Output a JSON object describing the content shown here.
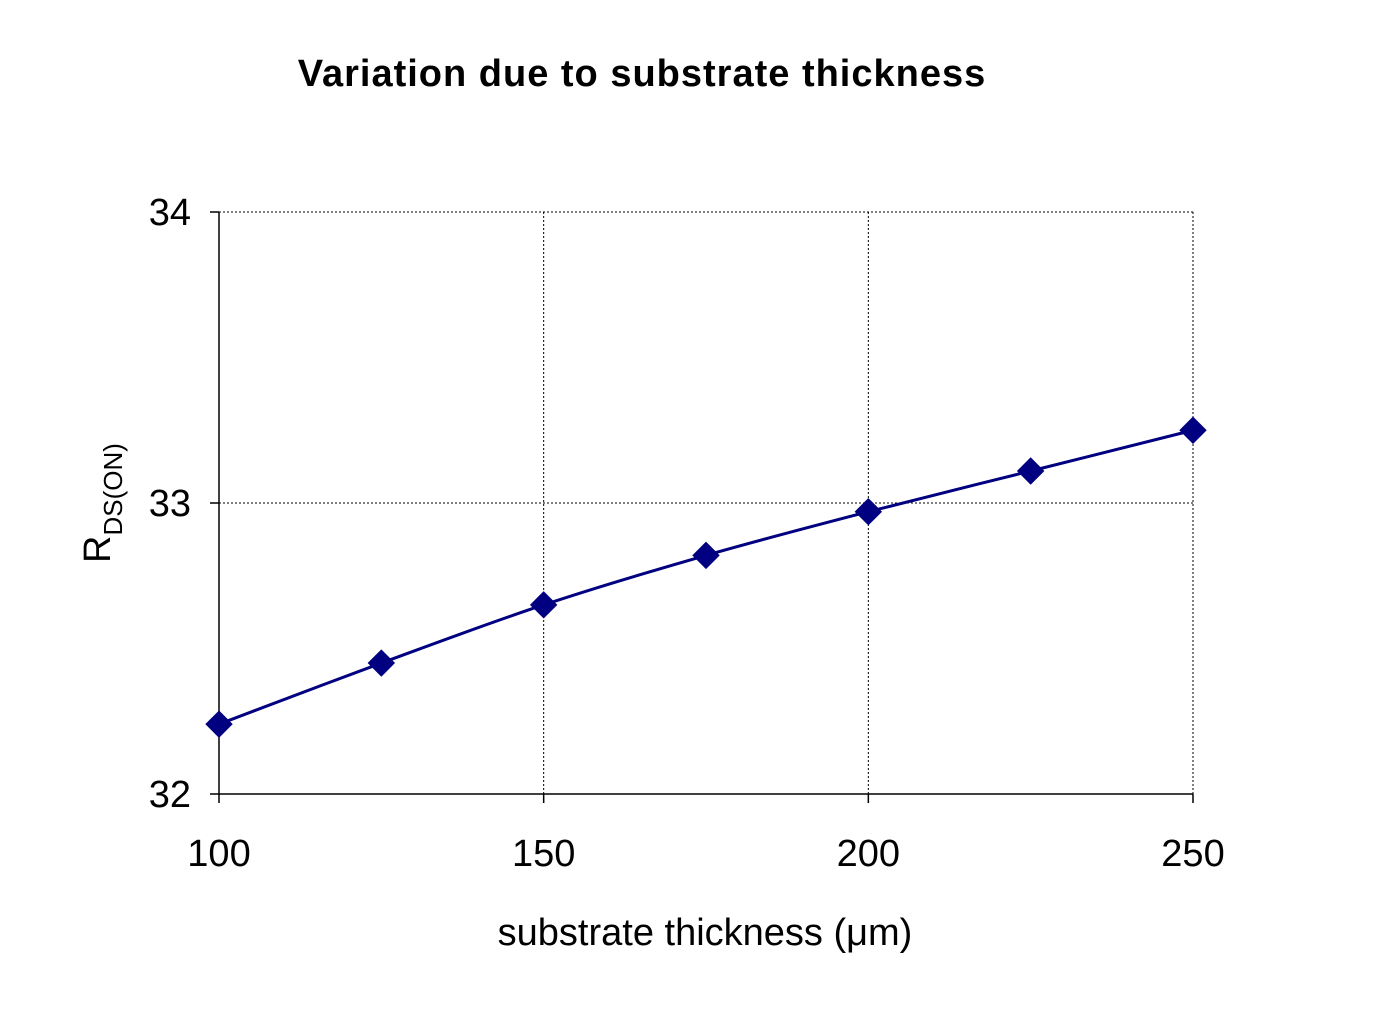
{
  "chart_data": {
    "type": "line",
    "title": "Variation due to substrate thickness",
    "xlabel": "substrate thickness (μm)",
    "ylabel_main": "R",
    "ylabel_sub": "DS(ON)",
    "x": [
      100,
      125,
      150,
      175,
      200,
      225,
      250
    ],
    "series": [
      {
        "values": [
          32.24,
          32.45,
          32.65,
          32.82,
          32.97,
          33.11,
          33.25
        ],
        "color": "#000080",
        "marker": "diamond"
      }
    ],
    "xlim": [
      100,
      250
    ],
    "ylim": [
      32,
      34
    ],
    "xticks": [
      100,
      150,
      200,
      250
    ],
    "yticks": [
      32,
      33,
      34
    ],
    "xtick_labels": [
      "100",
      "150",
      "200",
      "250"
    ],
    "ytick_labels": [
      "32",
      "33",
      "34"
    ],
    "grid": true,
    "legend": "none"
  }
}
